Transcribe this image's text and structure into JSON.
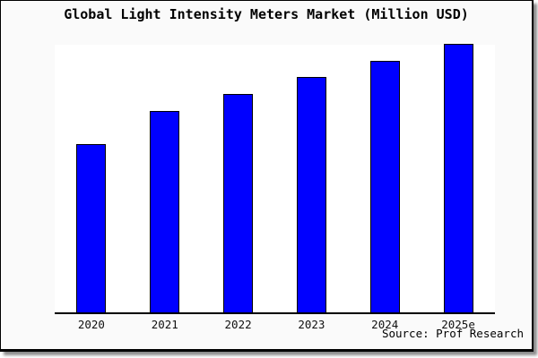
{
  "chart_data": {
    "type": "bar",
    "title": "Global Light Intensity Meters Market (Million USD)",
    "categories": [
      "2020",
      "2021",
      "2022",
      "2023",
      "2024",
      "2025e"
    ],
    "values": [
      250,
      300,
      325,
      350,
      375,
      400
    ],
    "xlabel": "",
    "ylabel": "",
    "ylim": [
      0,
      400
    ],
    "grid": false,
    "legend": false,
    "bar_color": "#0000ff",
    "bar_edge_color": "#000000",
    "figure_background": "#fafafa",
    "plot_background": "#ffffff",
    "annotation": "Source: Prof Research"
  }
}
